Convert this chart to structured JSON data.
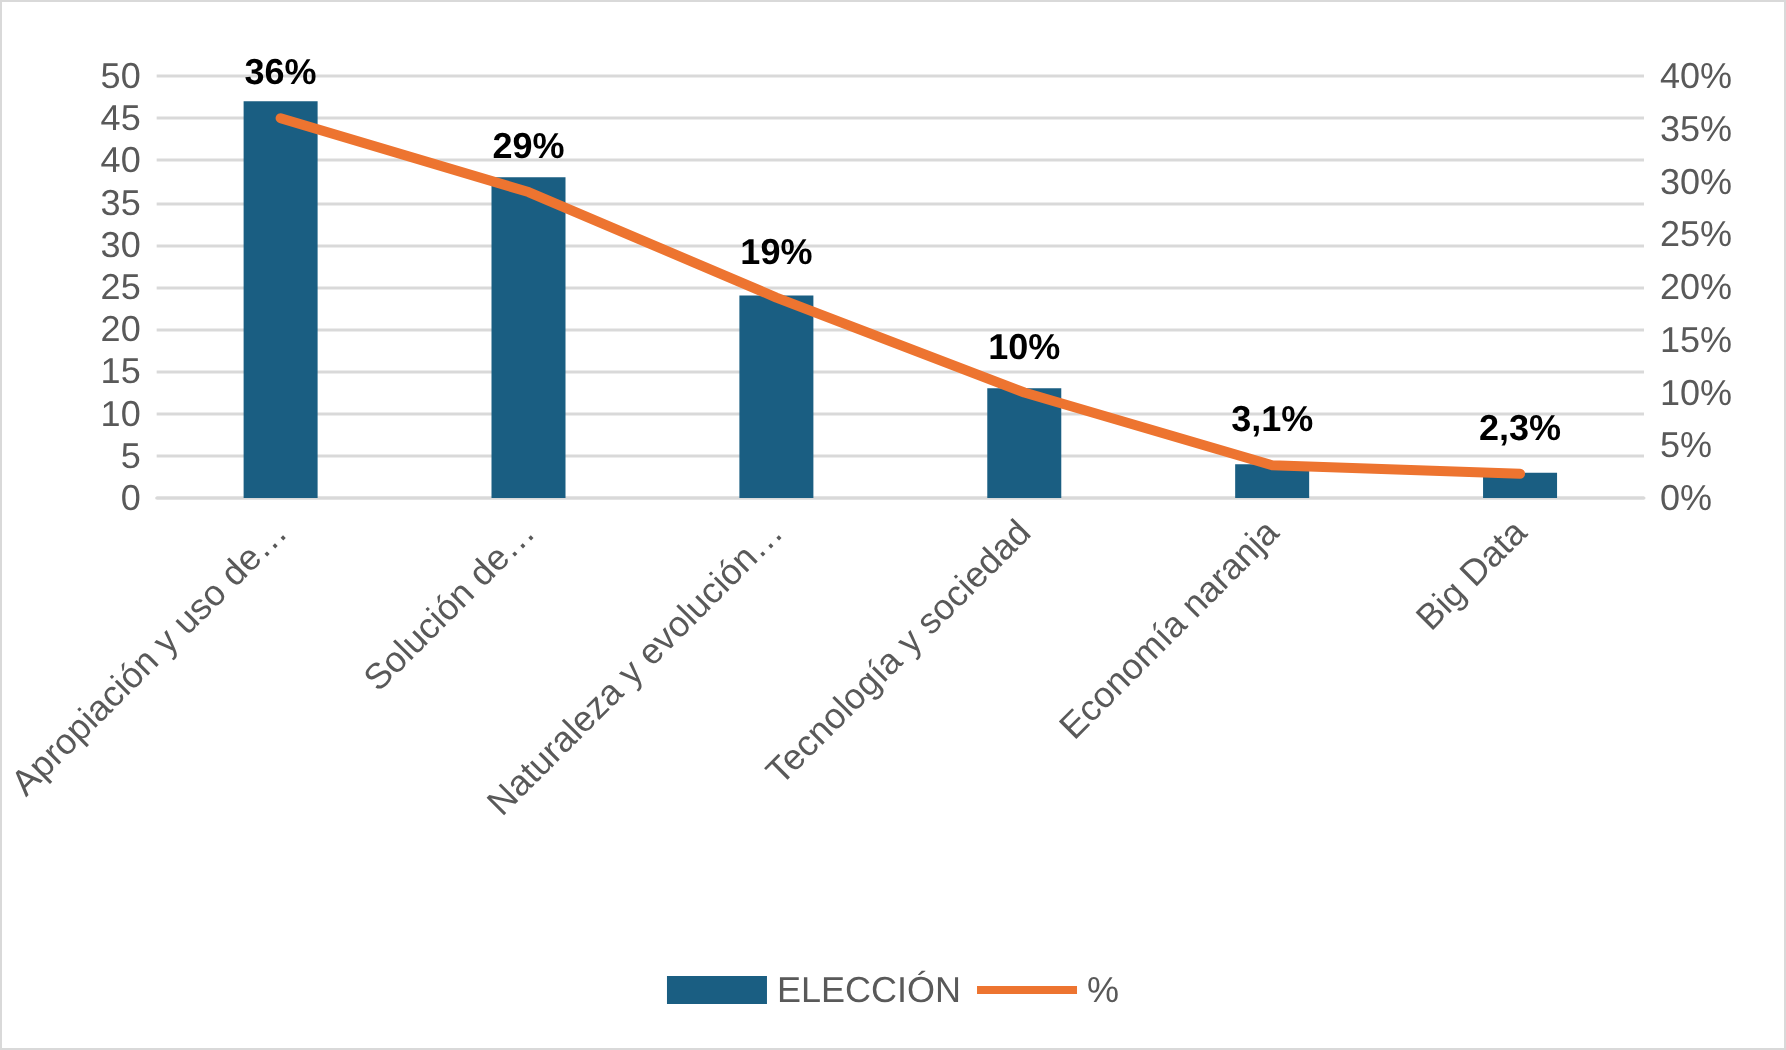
{
  "chart_data": {
    "type": "bar",
    "categories": [
      "Apropiación y uso de…",
      "Solución de…",
      "Naturaleza y evolución…",
      "Tecnología y sociedad",
      "Economía naranja",
      "Big Data"
    ],
    "series": [
      {
        "name": "ELECCIÓN",
        "color": "#1a5e82",
        "values": [
          47,
          38,
          24,
          13,
          4,
          3
        ]
      },
      {
        "name": "%",
        "type": "line",
        "axis": "y2",
        "color": "#ed7430",
        "values": [
          36,
          29,
          19,
          10,
          3.1,
          2.3
        ],
        "value_labels": [
          "36%",
          "29%",
          "19%",
          "10%",
          "3,1%",
          "2,3%"
        ]
      }
    ],
    "ylim": [
      0,
      50
    ],
    "yticks": [
      0,
      5,
      10,
      15,
      20,
      25,
      30,
      35,
      40,
      45,
      50
    ],
    "y2lim": [
      0,
      40
    ],
    "y2ticks": [
      {
        "value": 0,
        "label": "0%"
      },
      {
        "value": 5,
        "label": "5%"
      },
      {
        "value": 10,
        "label": "10%"
      },
      {
        "value": 15,
        "label": "15%"
      },
      {
        "value": 20,
        "label": "20%"
      },
      {
        "value": 25,
        "label": "25%"
      },
      {
        "value": 30,
        "label": "30%"
      },
      {
        "value": 35,
        "label": "35%"
      },
      {
        "value": 40,
        "label": "40%"
      }
    ],
    "grid": "y",
    "legend": "bottom",
    "marker": "none"
  }
}
